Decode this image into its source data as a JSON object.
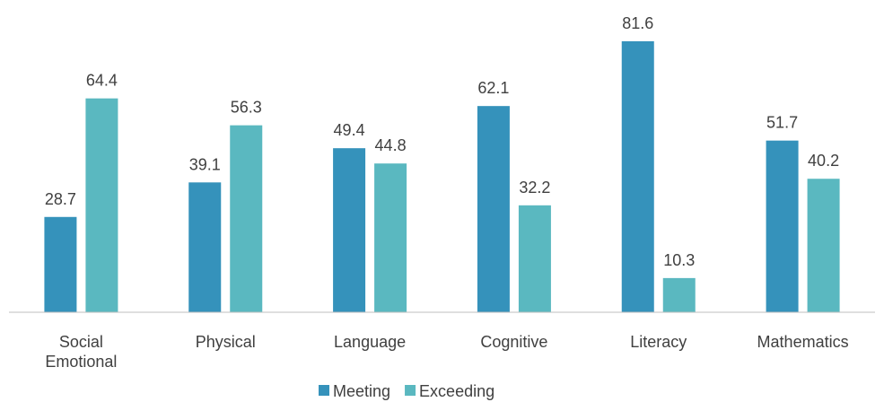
{
  "chart_data": {
    "type": "bar",
    "categories": [
      "Social Emotional",
      "Physical",
      "Language",
      "Cognitive",
      "Literacy",
      "Mathematics"
    ],
    "series": [
      {
        "name": "Meeting",
        "color": "#3592bb",
        "values": [
          28.7,
          39.1,
          49.4,
          62.1,
          81.6,
          51.7
        ]
      },
      {
        "name": "Exceeding",
        "color": "#5ab8c0",
        "values": [
          64.4,
          56.3,
          44.8,
          32.2,
          10.3,
          40.2
        ]
      }
    ],
    "legend": "bottom"
  }
}
